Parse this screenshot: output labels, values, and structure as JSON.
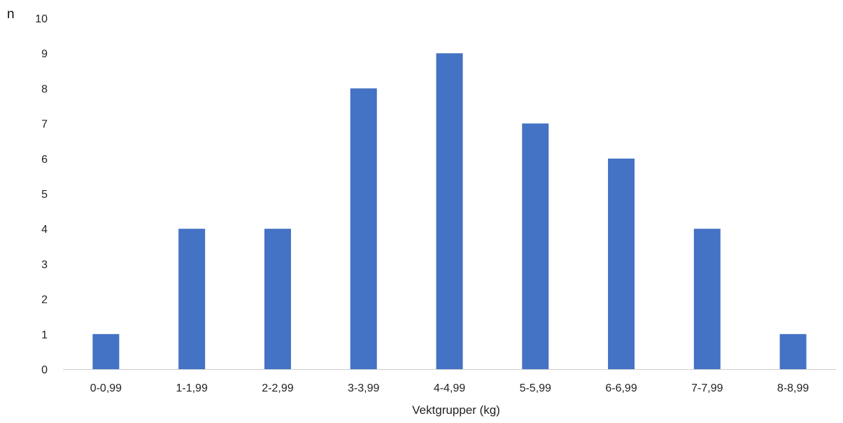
{
  "chart_data": {
    "type": "bar",
    "categories": [
      "0-0,99",
      "1-1,99",
      "2-2,99",
      "3-3,99",
      "4-4,99",
      "5-5,99",
      "6-6,99",
      "7-7,99",
      "8-8,99"
    ],
    "values": [
      1,
      4,
      4,
      8,
      9,
      7,
      6,
      4,
      1
    ],
    "yticks": [
      "0",
      "1",
      "2",
      "3",
      "4",
      "5",
      "6",
      "7",
      "8",
      "9",
      "10"
    ],
    "xlabel": "Vektgrupper (kg)",
    "ylabel": "n",
    "ylim": [
      0,
      10
    ],
    "grid": false,
    "bar_color": "#4472C4"
  }
}
